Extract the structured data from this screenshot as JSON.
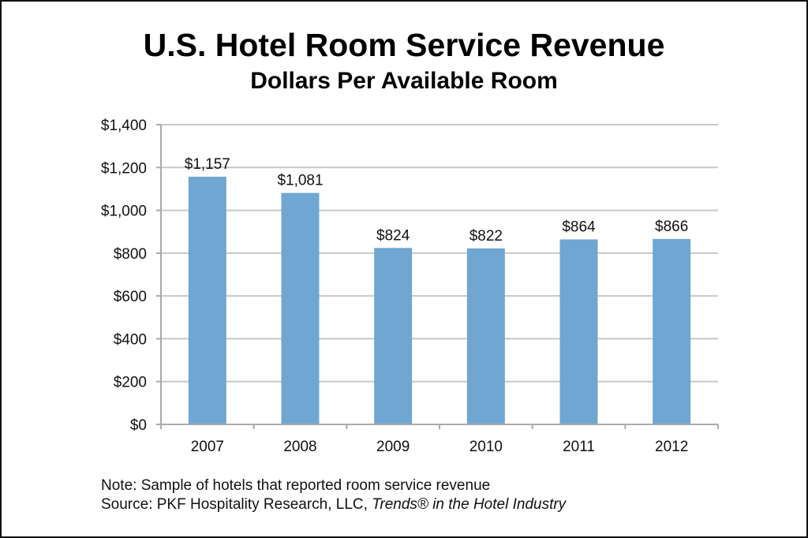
{
  "chart_data": {
    "type": "bar",
    "title": "U.S. Hotel Room Service Revenue",
    "subtitle": "Dollars Per Available Room",
    "categories": [
      "2007",
      "2008",
      "2009",
      "2010",
      "2011",
      "2012"
    ],
    "values": [
      1157,
      1081,
      824,
      822,
      864,
      866
    ],
    "data_labels": [
      "$1,157",
      "$1,081",
      "$824",
      "$822",
      "$864",
      "$866"
    ],
    "ylim": [
      0,
      1400
    ],
    "yticks": [
      0,
      200,
      400,
      600,
      800,
      1000,
      1200,
      1400
    ],
    "ytick_labels": [
      "$0",
      "$200",
      "$400",
      "$600",
      "$800",
      "$1,000",
      "$1,200",
      "$1,400"
    ],
    "grid": true,
    "bar_color": "#6fa6d2",
    "grid_color": "#c8c8c8"
  },
  "footer": {
    "note": "Note: Sample of hotels that reported room service revenue",
    "source_prefix": "Source: PKF Hospitality Research, LLC, ",
    "source_title": "Trends® in the Hotel Industry"
  }
}
